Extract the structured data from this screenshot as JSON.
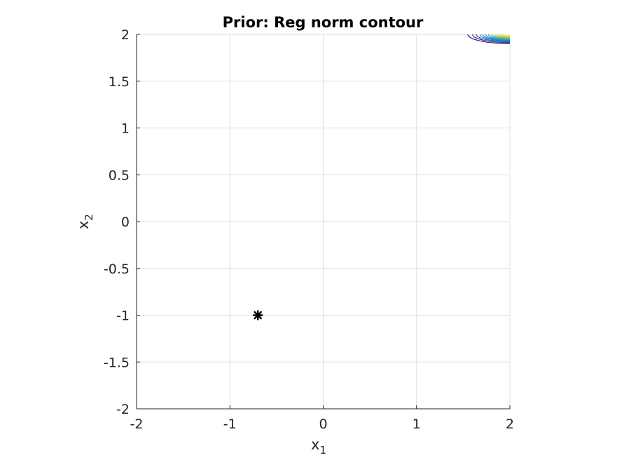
{
  "chart_data": {
    "type": "contour",
    "title": "Prior: Reg norm contour",
    "xlabel": "x",
    "xlabel_subscript": "1",
    "ylabel": "x",
    "ylabel_subscript": "2",
    "xlim": [
      -2,
      2
    ],
    "ylim": [
      -2,
      2
    ],
    "xticks": [
      -2,
      -1,
      0,
      1,
      2
    ],
    "yticks": [
      -2,
      -1.5,
      -1,
      -0.5,
      0,
      0.5,
      1,
      1.5,
      2
    ],
    "xtick_labels": [
      "-2",
      "-1",
      "0",
      "1",
      "2"
    ],
    "ytick_labels": [
      "-2",
      "-1.5",
      "-1",
      "-0.5",
      "0",
      "0.5",
      "1",
      "1.5",
      "2"
    ],
    "grid": true,
    "marker": {
      "x": -0.7,
      "y": -1.0,
      "symbol": "asterisk",
      "color": "#000000"
    },
    "contour_center": {
      "x": 2.0,
      "y": 2.0
    },
    "contour_levels": [
      {
        "radius": 0.45,
        "color": "#2a1a6b"
      },
      {
        "radius": 0.4,
        "color": "#3b2f8f"
      },
      {
        "radius": 0.36,
        "color": "#2f4fb0"
      },
      {
        "radius": 0.32,
        "color": "#2a6fc8"
      },
      {
        "radius": 0.29,
        "color": "#1f8bd6"
      },
      {
        "radius": 0.26,
        "color": "#17a2c8"
      },
      {
        "radius": 0.23,
        "color": "#20b3a8"
      },
      {
        "radius": 0.2,
        "color": "#4dbd86"
      },
      {
        "radius": 0.17,
        "color": "#8cc45e"
      },
      {
        "radius": 0.14,
        "color": "#c4c23a"
      },
      {
        "radius": 0.11,
        "color": "#efc22a"
      },
      {
        "radius": 0.08,
        "color": "#f9d71c"
      }
    ]
  }
}
